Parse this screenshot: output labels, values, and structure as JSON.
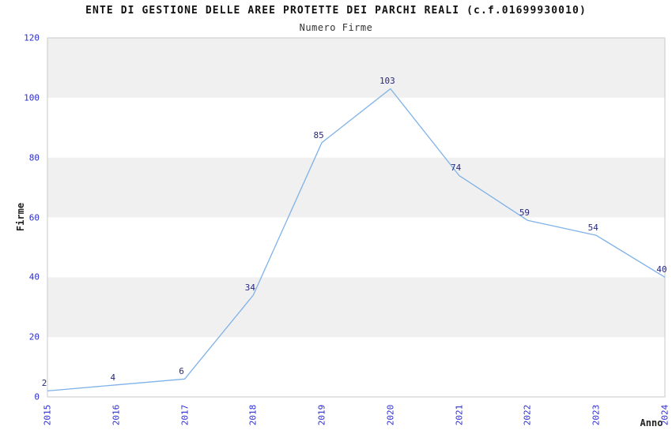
{
  "chart_data": {
    "type": "line",
    "title": "ENTE DI GESTIONE DELLE AREE PROTETTE DEI PARCHI REALI (c.f.01699930010)",
    "subtitle": "Numero Firme",
    "xlabel": "Anno",
    "ylabel": "Firme",
    "categories": [
      "2015",
      "2016",
      "2017",
      "2018",
      "2019",
      "2020",
      "2021",
      "2022",
      "2023",
      "2024"
    ],
    "values": [
      2,
      4,
      6,
      34,
      85,
      103,
      74,
      59,
      54,
      40
    ],
    "yticks": [
      0,
      20,
      40,
      60,
      80,
      100,
      120
    ],
    "ylim": [
      0,
      120
    ],
    "grid": "alternating-horizontal-bands",
    "legend_position": "none",
    "data_labels_visible": true,
    "colors": {
      "line": "#7fb2e8",
      "tick_label": "#2b2bd0",
      "data_label": "#28287d",
      "band_gray": "#f0f0f0",
      "band_white": "#ffffff",
      "plot_border": "#c9c9c9",
      "title": "#111111",
      "axis_title": "#222222"
    }
  }
}
